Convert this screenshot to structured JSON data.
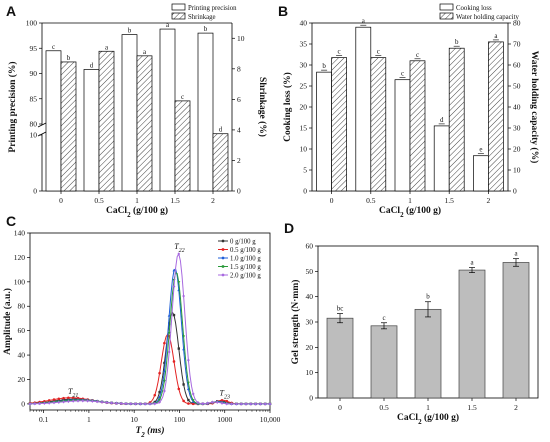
{
  "chart_data": [
    {
      "panel": "A",
      "type": "bar",
      "categories": [
        "0",
        "0.5",
        "1",
        "1.5",
        "2"
      ],
      "xlabel": "CaCl₂ (g/100 g)",
      "ylabel_left": "Printing precision (%)",
      "ylabel_right": "Shrinkage (%)",
      "ylim_left_broken": [
        [
          0,
          10
        ],
        [
          80,
          100
        ]
      ],
      "yticks_left": [
        "0",
        "10",
        "80",
        "85",
        "90",
        "95",
        "100"
      ],
      "ylim_right": [
        0,
        11
      ],
      "yticks_right": [
        "0",
        "2",
        "4",
        "6",
        "8",
        "10"
      ],
      "legend_position": "top-right",
      "series": [
        {
          "name": "Printing precision",
          "axis": "left",
          "values": [
            94.5,
            90.8,
            97.7,
            98.8,
            98.0
          ],
          "letters": [
            "c",
            "d",
            "b",
            "a",
            "b"
          ],
          "fill": "open"
        },
        {
          "name": "Shrinkage",
          "axis": "right",
          "values": [
            8.45,
            9.15,
            8.85,
            5.9,
            3.75
          ],
          "letters": [
            "b",
            "a",
            "a",
            "c",
            "d"
          ],
          "fill": "hatched"
        }
      ]
    },
    {
      "panel": "B",
      "type": "bar",
      "categories": [
        "0",
        "0.5",
        "1",
        "1.5",
        "2"
      ],
      "xlabel": "CaCl₂ (g/100 g)",
      "ylabel_left": "Cooking loss (%)",
      "ylabel_right": "Water holding capacity (%)",
      "ylim_left": [
        0,
        40
      ],
      "yticks_left": [
        "0",
        "5",
        "10",
        "15",
        "20",
        "25",
        "30",
        "35",
        "40"
      ],
      "ylim_right": [
        0,
        80
      ],
      "yticks_right": [
        "0",
        "10",
        "20",
        "30",
        "40",
        "50",
        "60",
        "70",
        "80"
      ],
      "legend_position": "top-right",
      "series": [
        {
          "name": "Cooking loss",
          "axis": "left",
          "values": [
            28.3,
            39.0,
            26.5,
            15.5,
            8.4
          ],
          "letters": [
            "b",
            "a",
            "c",
            "d",
            "e"
          ],
          "fill": "open"
        },
        {
          "name": "Water holding capacity",
          "axis": "right",
          "values": [
            63.5,
            63.5,
            62.0,
            68.0,
            71.0
          ],
          "letters": [
            "c",
            "c",
            "c",
            "b",
            "a"
          ],
          "fill": "hatched"
        }
      ]
    },
    {
      "panel": "C",
      "type": "line",
      "xlabel": "T₂ (ms)",
      "ylabel": "Amplitude (a.u.)",
      "xscale": "log",
      "xlim": [
        0.05,
        10000
      ],
      "xticks": [
        "0.1",
        "1",
        "10",
        "100",
        "1000",
        "10,000"
      ],
      "ylim": [
        -5,
        140
      ],
      "yticks": [
        "0",
        "20",
        "40",
        "60",
        "80",
        "100",
        "120",
        "140"
      ],
      "legend_position": "top-right",
      "annotations": [
        "T21",
        "T22",
        "T23"
      ],
      "series": [
        {
          "name": "0 g/100 g",
          "color": "#333333",
          "marker": "square",
          "peaks": [
            [
              0.5,
              4
            ],
            [
              70,
              75
            ],
            [
              800,
              2.5
            ]
          ]
        },
        {
          "name": "0.5 g/100 g",
          "color": "#e32222",
          "marker": "circle",
          "peaks": [
            [
              0.4,
              5
            ],
            [
              55,
              57
            ],
            [
              900,
              3
            ]
          ]
        },
        {
          "name": "1.0 g/100 g",
          "color": "#1f5fd8",
          "marker": "triangle",
          "peaks": [
            [
              0.6,
              3.5
            ],
            [
              80,
              111
            ],
            [
              700,
              2
            ]
          ]
        },
        {
          "name": "1.5 g/100 g",
          "color": "#2a9a3a",
          "marker": "triangle-down",
          "peaks": [
            [
              0.6,
              3
            ],
            [
              85,
              108
            ],
            [
              650,
              1.5
            ]
          ]
        },
        {
          "name": "2.0 g/100 g",
          "color": "#a86ae0",
          "marker": "diamond",
          "peaks": [
            [
              0.7,
              2.5
            ],
            [
              95,
              123
            ],
            [
              600,
              1.5
            ]
          ]
        }
      ]
    },
    {
      "panel": "D",
      "type": "bar",
      "categories": [
        "0",
        "0.5",
        "1",
        "1.5",
        "2"
      ],
      "values": [
        31.5,
        28.5,
        35.0,
        50.5,
        53.5
      ],
      "errors": [
        1.8,
        1.2,
        3.0,
        1.0,
        1.5
      ],
      "letters": [
        "bc",
        "c",
        "b",
        "a",
        "a"
      ],
      "xlabel": "CaCl₂ (g/100 g)",
      "ylabel": "Gel strength (N·mm)",
      "ylim": [
        0,
        60
      ],
      "yticks": [
        "0",
        "10",
        "20",
        "30",
        "40",
        "50",
        "60"
      ],
      "bar_color": "#bdbdbd"
    }
  ]
}
